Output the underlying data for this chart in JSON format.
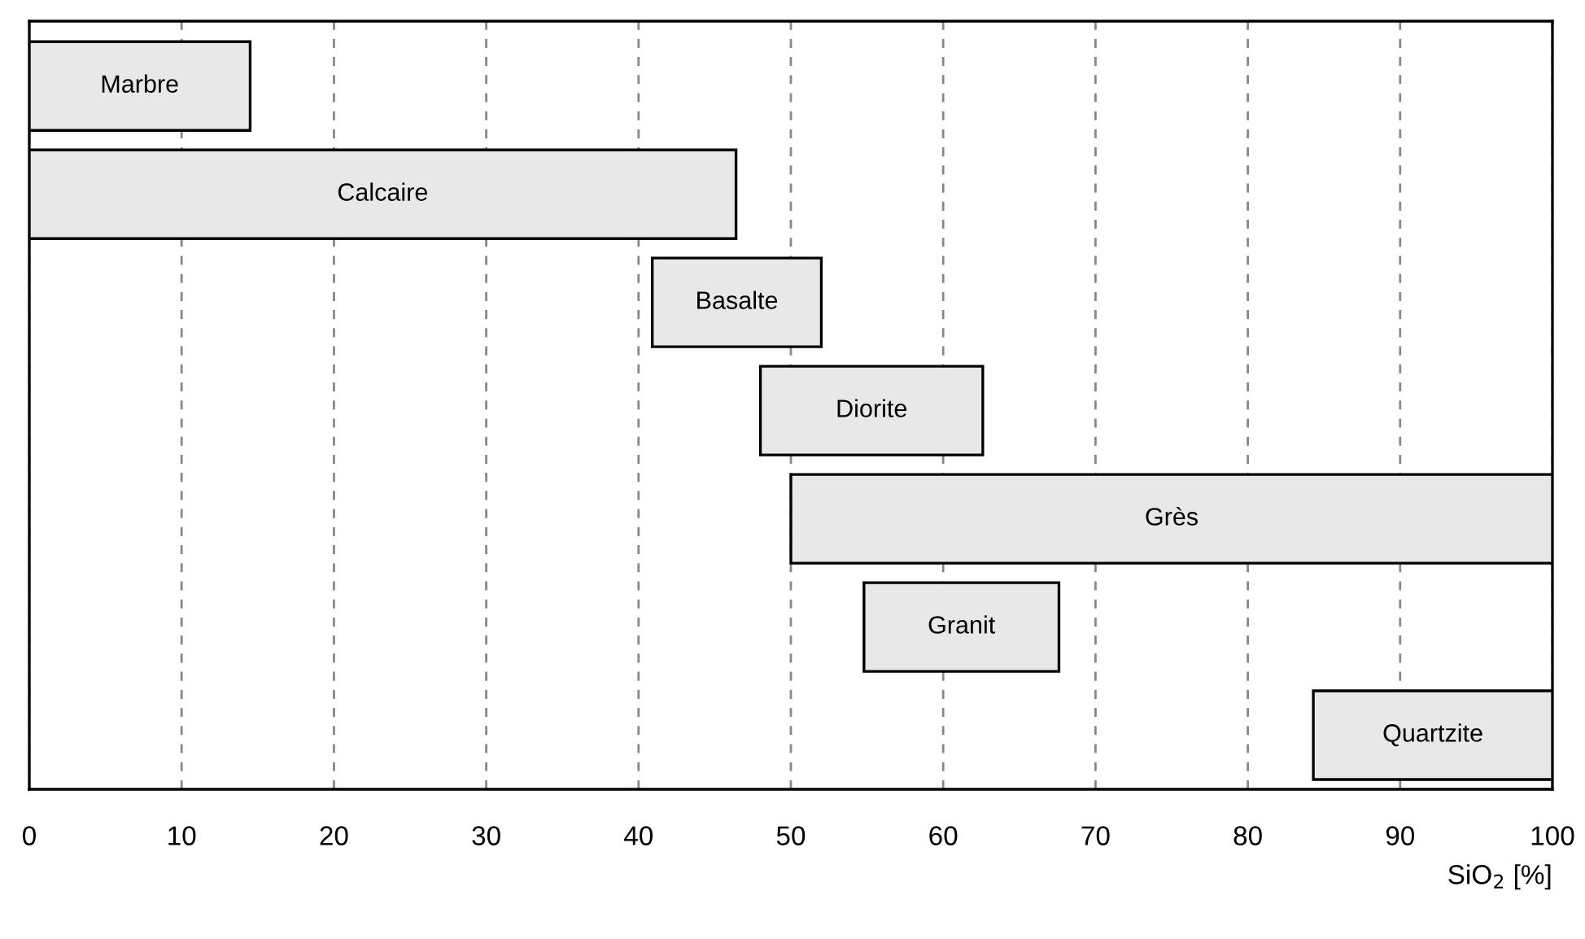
{
  "chart_data": {
    "type": "bar",
    "orientation": "horizontal",
    "xlabel": "SiO$_{2}$ [%]",
    "categories": [
      "Marbre",
      "Calcaire",
      "Basalte",
      "Diorite",
      "Grès",
      "Granit",
      "Quartzite"
    ],
    "base": [
      0,
      0,
      40.9,
      48.0,
      50,
      54.8,
      84.3
    ],
    "values": [
      14.5,
      46.4,
      11.1,
      14.6,
      50,
      12.8,
      15.7
    ],
    "color": "#e8e8e8",
    "xlim": [
      0,
      100
    ],
    "xticks": [
      0,
      10,
      20,
      30,
      40,
      50,
      60,
      70,
      80,
      90,
      100
    ],
    "grid": "x",
    "tick_labels": "x"
  }
}
